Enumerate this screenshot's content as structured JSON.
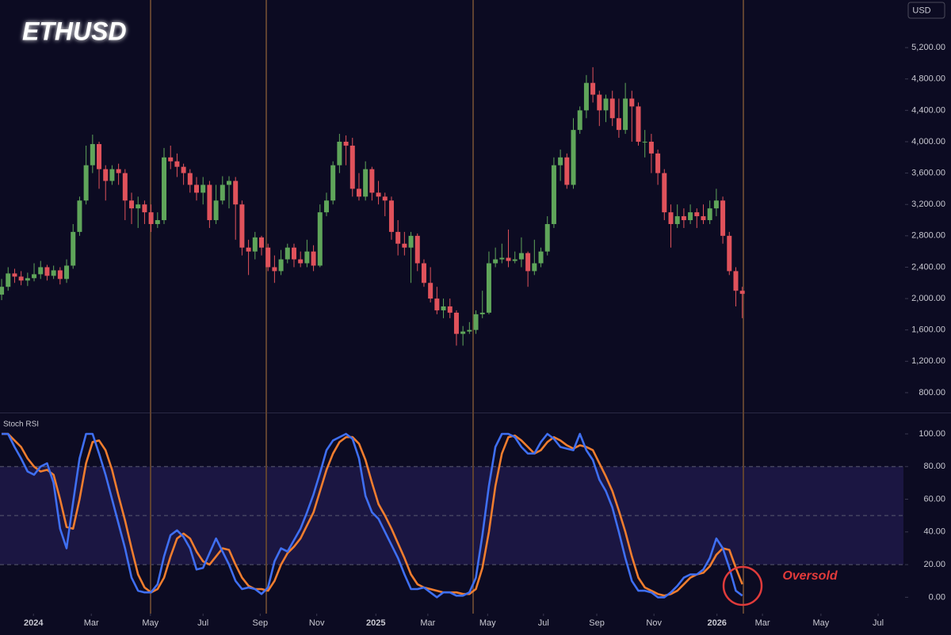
{
  "chart_data": [
    {
      "type": "candlestick",
      "title": "ETHUSD",
      "currency": "USD",
      "up_color": "#5fa55a",
      "down_color": "#e0525b",
      "xlim": [
        -0.25,
        138.8
      ],
      "ylim": [
        547,
        5807
      ],
      "yticks": [
        {
          "value": 800,
          "label": "800.00"
        },
        {
          "value": 1200,
          "label": "1,200.00"
        },
        {
          "value": 1600,
          "label": "1,600.00"
        },
        {
          "value": 2000,
          "label": "2,000.00"
        },
        {
          "value": 2400,
          "label": "2,400.00"
        },
        {
          "value": 2800,
          "label": "2,800.00"
        },
        {
          "value": 3200,
          "label": "3,200.00"
        },
        {
          "value": 3600,
          "label": "3,600.00"
        },
        {
          "value": 4000,
          "label": "4,000.00"
        },
        {
          "value": 4400,
          "label": "4,400.00"
        },
        {
          "value": 4800,
          "label": "4,800.00"
        },
        {
          "value": 5200,
          "label": "5,200.00"
        }
      ],
      "x": [
        0,
        1,
        2,
        3,
        4,
        5,
        6,
        7,
        8,
        9,
        10,
        11,
        12,
        13,
        14,
        15,
        16,
        17,
        18,
        19,
        20,
        21,
        22,
        23,
        24,
        25,
        26,
        27,
        28,
        29,
        30,
        31,
        32,
        33,
        34,
        35,
        36,
        37,
        38,
        39,
        40,
        41,
        42,
        43,
        44,
        45,
        46,
        47,
        48,
        49,
        50,
        51,
        52,
        53,
        54,
        55,
        56,
        57,
        58,
        59,
        60,
        61,
        62,
        63,
        64,
        65,
        66,
        67,
        68,
        69,
        70,
        71,
        72,
        73,
        74,
        75,
        76,
        77,
        78,
        79,
        80,
        81,
        82,
        83,
        84,
        85,
        86,
        87,
        88,
        89,
        90,
        91,
        92,
        93,
        94,
        95,
        96,
        97,
        98,
        99,
        100,
        101,
        102,
        103,
        104,
        105,
        106,
        107,
        108,
        109,
        110,
        111,
        112,
        113,
        114
      ],
      "open": [
        2050,
        2150,
        2320,
        2280,
        2230,
        2260,
        2310,
        2400,
        2290,
        2360,
        2250,
        2420,
        2850,
        3250,
        3700,
        3970,
        3650,
        3500,
        3650,
        3600,
        3250,
        3150,
        3200,
        3100,
        2950,
        3000,
        3800,
        3750,
        3680,
        3600,
        3450,
        3350,
        3450,
        3000,
        3250,
        3450,
        3500,
        3200,
        2650,
        2600,
        2780,
        2650,
        2400,
        2350,
        2500,
        2650,
        2500,
        2450,
        2600,
        2420,
        3100,
        3250,
        3700,
        4000,
        3950,
        3400,
        3300,
        3650,
        3350,
        3300,
        3250,
        2850,
        2700,
        2650,
        2800,
        2450,
        2200,
        2000,
        1850,
        1900,
        1820,
        1550,
        1580,
        1600,
        1800,
        1820,
        2450,
        2500,
        2520,
        2480,
        2500,
        2580,
        2350,
        2450,
        2600,
        2950,
        3700,
        3800,
        3450,
        4150,
        4400,
        4750,
        4600,
        4400,
        4550,
        4300,
        4150,
        4550,
        4450,
        4000,
        4000,
        3850,
        3600,
        3100,
        2950,
        3050,
        3000,
        3100,
        3050,
        3000,
        3150,
        3250,
        2800,
        2350,
        2100
      ],
      "high": [
        2250,
        2400,
        2380,
        2350,
        2330,
        2450,
        2480,
        2430,
        2420,
        2400,
        2500,
        2950,
        3300,
        3950,
        4090,
        4000,
        3700,
        3700,
        3720,
        3650,
        3350,
        3300,
        3250,
        3200,
        3100,
        3920,
        3950,
        3850,
        3720,
        3650,
        3550,
        3550,
        3500,
        3450,
        3560,
        3560,
        3550,
        3250,
        2750,
        2850,
        2800,
        2700,
        2550,
        2620,
        2700,
        2700,
        2600,
        2750,
        2680,
        3200,
        3350,
        3750,
        4100,
        4080,
        4050,
        3600,
        3750,
        3680,
        3500,
        3350,
        3300,
        3000,
        2850,
        2850,
        2830,
        2500,
        2400,
        2150,
        2000,
        2000,
        1850,
        1650,
        1700,
        1850,
        2100,
        2600,
        2650,
        2700,
        2880,
        2600,
        2780,
        2600,
        2750,
        2650,
        3050,
        3800,
        3900,
        3850,
        4300,
        4450,
        4850,
        4950,
        4650,
        4600,
        4650,
        4550,
        4750,
        4650,
        4500,
        4150,
        4100,
        3900,
        3650,
        3200,
        3200,
        3150,
        3200,
        3150,
        3200,
        3250,
        3400,
        3300,
        2850,
        2400,
        2150
      ],
      "low": [
        1980,
        2100,
        2200,
        2170,
        2160,
        2220,
        2250,
        2230,
        2250,
        2180,
        2200,
        2380,
        2800,
        3200,
        3600,
        3400,
        3250,
        3450,
        3450,
        3000,
        2950,
        2900,
        2950,
        2850,
        2900,
        2950,
        3650,
        3550,
        3450,
        3350,
        3250,
        3200,
        2900,
        2950,
        3200,
        3150,
        2750,
        2550,
        2300,
        2500,
        2550,
        2350,
        2200,
        2300,
        2450,
        2400,
        2400,
        2400,
        2350,
        2400,
        3050,
        3200,
        3600,
        3700,
        3300,
        3250,
        3250,
        3250,
        3200,
        3050,
        2750,
        2550,
        2550,
        2200,
        2350,
        2150,
        1950,
        1800,
        1750,
        1750,
        1400,
        1400,
        1550,
        1550,
        1750,
        1800,
        2400,
        2450,
        2400,
        2450,
        2400,
        2150,
        2300,
        2400,
        2550,
        2900,
        3500,
        3400,
        3400,
        4100,
        4300,
        4500,
        4200,
        4250,
        4200,
        4050,
        4100,
        4000,
        3950,
        3800,
        3600,
        3450,
        3000,
        2650,
        2900,
        2900,
        2950,
        2900,
        2950,
        2950,
        3050,
        2700,
        2300,
        1900,
        1750
      ],
      "close": [
        2150,
        2320,
        2280,
        2230,
        2260,
        2310,
        2400,
        2290,
        2360,
        2250,
        2420,
        2850,
        3250,
        3700,
        3970,
        3650,
        3500,
        3650,
        3600,
        3250,
        3150,
        3200,
        3100,
        2950,
        3000,
        3800,
        3750,
        3680,
        3600,
        3450,
        3350,
        3450,
        3000,
        3250,
        3450,
        3500,
        3200,
        2650,
        2600,
        2780,
        2650,
        2400,
        2350,
        2500,
        2650,
        2500,
        2450,
        2600,
        2420,
        3100,
        3250,
        3700,
        4000,
        3950,
        3400,
        3300,
        3650,
        3350,
        3300,
        3250,
        2850,
        2700,
        2650,
        2800,
        2450,
        2200,
        2000,
        1850,
        1900,
        1820,
        1550,
        1580,
        1600,
        1800,
        1820,
        2450,
        2500,
        2520,
        2480,
        2500,
        2580,
        2350,
        2450,
        2600,
        2950,
        3700,
        3800,
        3450,
        4150,
        4400,
        4750,
        4600,
        4400,
        4550,
        4300,
        4150,
        4550,
        4450,
        4000,
        4000,
        3850,
        3600,
        3100,
        2950,
        3050,
        3000,
        3100,
        3050,
        3000,
        3150,
        3250,
        2800,
        2350,
        2100,
        2060
      ]
    },
    {
      "type": "line",
      "title": "Stoch RSI",
      "annotation": "Oversold",
      "xlim": [
        -0.25,
        138.8
      ],
      "ylim": [
        -10,
        112.6
      ],
      "yticks": [
        {
          "value": 0,
          "label": "0.00"
        },
        {
          "value": 20,
          "label": "20.00"
        },
        {
          "value": 40,
          "label": "40.00"
        },
        {
          "value": 60,
          "label": "60.00"
        },
        {
          "value": 80,
          "label": "80.00"
        },
        {
          "value": 100,
          "label": "100.00"
        }
      ],
      "band": [
        20,
        80
      ],
      "dashed_lines": [
        20,
        50,
        80
      ],
      "xticks": [
        {
          "value": 4.9,
          "label": "2024"
        },
        {
          "value": 13.8,
          "label": "Mar"
        },
        {
          "value": 22.9,
          "label": "May"
        },
        {
          "value": 31.0,
          "label": "Jul"
        },
        {
          "value": 39.8,
          "label": "Sep"
        },
        {
          "value": 48.5,
          "label": "Nov"
        },
        {
          "value": 57.6,
          "label": "2025"
        },
        {
          "value": 65.6,
          "label": "Mar"
        },
        {
          "value": 74.8,
          "label": "May"
        },
        {
          "value": 83.4,
          "label": "Jul"
        },
        {
          "value": 91.6,
          "label": "Sep"
        },
        {
          "value": 100.4,
          "label": "Nov"
        },
        {
          "value": 110.1,
          "label": "2026"
        },
        {
          "value": 117.1,
          "label": "Mar"
        },
        {
          "value": 126.1,
          "label": "May"
        },
        {
          "value": 134.9,
          "label": "Jul"
        }
      ],
      "x": [
        0,
        1,
        2,
        3,
        4,
        5,
        6,
        7,
        8,
        9,
        10,
        11,
        12,
        13,
        14,
        15,
        16,
        17,
        18,
        19,
        20,
        21,
        22,
        23,
        24,
        25,
        26,
        27,
        28,
        29,
        30,
        31,
        32,
        33,
        34,
        35,
        36,
        37,
        38,
        39,
        40,
        41,
        42,
        43,
        44,
        45,
        46,
        47,
        48,
        49,
        50,
        51,
        52,
        53,
        54,
        55,
        56,
        57,
        58,
        59,
        60,
        61,
        62,
        63,
        64,
        65,
        66,
        67,
        68,
        69,
        70,
        71,
        72,
        73,
        74,
        75,
        76,
        77,
        78,
        79,
        80,
        81,
        82,
        83,
        84,
        85,
        86,
        87,
        88,
        89,
        90,
        91,
        92,
        93,
        94,
        95,
        96,
        97,
        98,
        99,
        100,
        101,
        102,
        103,
        104,
        105,
        106,
        107,
        108,
        109,
        110,
        111,
        112,
        113,
        114
      ],
      "series": [
        {
          "color": "#f07d2e",
          "values": [
            100,
            100,
            96,
            92,
            85,
            80,
            77,
            78,
            75,
            60,
            43,
            42,
            60,
            82,
            95,
            96,
            90,
            78,
            62,
            47,
            30,
            14,
            6,
            3,
            5,
            12,
            25,
            36,
            39,
            36,
            28,
            22,
            20,
            25,
            30,
            29,
            20,
            12,
            7,
            5,
            5,
            4,
            10,
            20,
            27,
            31,
            36,
            44,
            52,
            65,
            78,
            88,
            95,
            98,
            98,
            94,
            84,
            70,
            57,
            50,
            42,
            33,
            24,
            14,
            8,
            6,
            5,
            4,
            3,
            3,
            3,
            2,
            2,
            5,
            18,
            40,
            68,
            88,
            98,
            99,
            96,
            92,
            88,
            90,
            95,
            98,
            96,
            93,
            91,
            93,
            92,
            90,
            82,
            74,
            65,
            53,
            40,
            25,
            12,
            6,
            4,
            2,
            1,
            2,
            4,
            8,
            12,
            14,
            15,
            19,
            26,
            30,
            29,
            18,
            8
          ]
        },
        {
          "color": "#3f6ff2",
          "values": [
            100,
            100,
            92,
            85,
            77,
            75,
            80,
            82,
            70,
            42,
            30,
            58,
            85,
            100,
            100,
            88,
            75,
            60,
            45,
            30,
            12,
            4,
            3,
            3,
            8,
            25,
            38,
            41,
            37,
            30,
            17,
            18,
            27,
            36,
            28,
            20,
            10,
            5,
            6,
            5,
            2,
            6,
            22,
            30,
            28,
            35,
            42,
            52,
            63,
            76,
            90,
            96,
            98,
            100,
            97,
            85,
            62,
            52,
            48,
            40,
            32,
            24,
            14,
            5,
            5,
            6,
            3,
            0,
            3,
            3,
            1,
            1,
            3,
            12,
            38,
            68,
            92,
            100,
            100,
            98,
            92,
            88,
            88,
            95,
            100,
            97,
            92,
            91,
            90,
            100,
            90,
            84,
            72,
            65,
            55,
            40,
            24,
            10,
            4,
            4,
            3,
            0,
            0,
            3,
            7,
            12,
            14,
            14,
            17,
            24,
            36,
            30,
            18,
            4,
            1
          ]
        }
      ]
    }
  ]
}
